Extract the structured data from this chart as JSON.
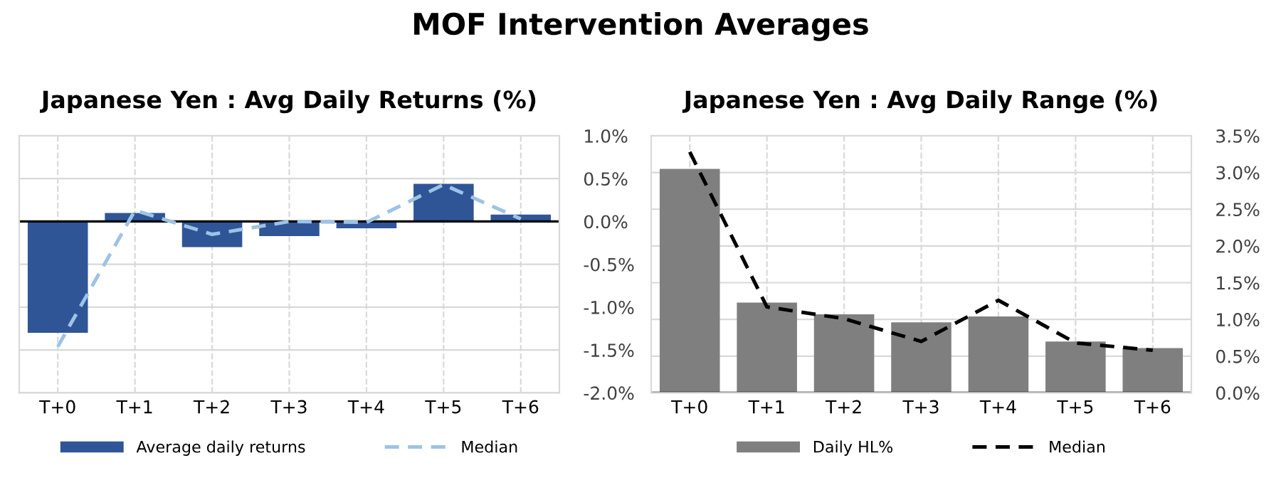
{
  "chart_data": [
    {
      "type": "bar",
      "title": "MOF Intervention Averages",
      "subtitle": "Japanese Yen : Avg Daily Returns (%)",
      "categories": [
        "T+0",
        "T+1",
        "T+2",
        "T+3",
        "T+4",
        "T+5",
        "T+6"
      ],
      "series": [
        {
          "name": "Average daily returns",
          "color": "#2f5597",
          "values": [
            -1.3,
            0.1,
            -0.3,
            -0.17,
            -0.08,
            0.44,
            0.08
          ]
        },
        {
          "name": "Median",
          "type": "line",
          "color": "#9dc3e6",
          "line_style": "dashed",
          "values": [
            -1.46,
            0.13,
            -0.15,
            0.0,
            -0.01,
            0.43,
            0.03
          ]
        }
      ],
      "ylim": [
        -2,
        1
      ],
      "yticks": [
        {
          "value": -2,
          "label": "-2.0%"
        },
        {
          "value": -1.5,
          "label": "-1.5%"
        },
        {
          "value": -1,
          "label": "-1.0%"
        },
        {
          "value": -0.5,
          "label": "-0.5%"
        },
        {
          "value": 0,
          "label": "0.0%"
        },
        {
          "value": 0.5,
          "label": "0.5%"
        },
        {
          "value": 1,
          "label": "1.0%"
        }
      ],
      "grid": true,
      "legend": "bottom"
    },
    {
      "type": "bar",
      "subtitle": "Japanese Yen : Avg Daily Range (%)",
      "categories": [
        "T+0",
        "T+1",
        "T+2",
        "T+3",
        "T+4",
        "T+5",
        "T+6"
      ],
      "series": [
        {
          "name": "Daily HL%",
          "color": "#7f7f7f",
          "values": [
            3.05,
            1.23,
            1.07,
            0.96,
            1.04,
            0.7,
            0.61
          ]
        },
        {
          "name": "Median",
          "type": "line",
          "color": "#000000",
          "line_style": "dashed",
          "values": [
            3.28,
            1.17,
            1.01,
            0.7,
            1.26,
            0.68,
            0.58
          ]
        }
      ],
      "ylim": [
        0,
        3.5
      ],
      "yticks": [
        {
          "value": 0,
          "label": "0.0%"
        },
        {
          "value": 0.5,
          "label": "0.5%"
        },
        {
          "value": 1,
          "label": "1.0%"
        },
        {
          "value": 1.5,
          "label": "1.5%"
        },
        {
          "value": 2,
          "label": "2.0%"
        },
        {
          "value": 2.5,
          "label": "2.5%"
        },
        {
          "value": 3,
          "label": "3.0%"
        },
        {
          "value": 3.5,
          "label": "3.5%"
        }
      ],
      "grid": true,
      "legend": "bottom"
    }
  ]
}
